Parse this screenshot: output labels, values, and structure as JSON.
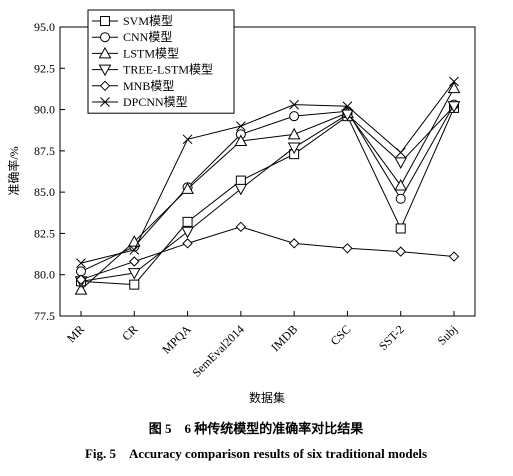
{
  "chart_data": {
    "type": "line",
    "ylabel": "准确率/%",
    "xlabel": "数据集",
    "categories": [
      "MR",
      "CR",
      "MPQA",
      "SemEval2014",
      "IMDB",
      "CSC",
      "SST-2",
      "Subj"
    ],
    "ylim": [
      77.5,
      95.0
    ],
    "yticks": [
      77.5,
      {
        "value": 80,
        "label": "80.0"
      },
      82.5,
      {
        "value": 85,
        "label": "85.0"
      },
      87.5,
      {
        "value": 90,
        "label": "90.0"
      },
      92.5,
      {
        "value": 95,
        "label": "95.0"
      }
    ],
    "legend": "upper left",
    "series": [
      {
        "name": "SVM模型",
        "marker": "square",
        "color": "#000000",
        "values": [
          79.6,
          79.4,
          83.2,
          85.7,
          87.3,
          89.6,
          82.8,
          90.1
        ]
      },
      {
        "name": "CNN模型",
        "marker": "circle",
        "color": "#000000",
        "values": [
          80.2,
          81.7,
          85.3,
          88.5,
          89.6,
          89.9,
          84.6,
          90.3
        ]
      },
      {
        "name": "LSTM模型",
        "marker": "triangle-up",
        "color": "#000000",
        "values": [
          79.1,
          82.0,
          85.2,
          88.1,
          88.5,
          89.8,
          85.4,
          91.3
        ]
      },
      {
        "name": "TREE-LSTM模型",
        "marker": "triangle-down",
        "color": "#000000",
        "values": [
          79.6,
          80.1,
          82.6,
          85.2,
          87.7,
          89.7,
          86.8,
          90.2
        ]
      },
      {
        "name": "MNB模型",
        "marker": "diamond",
        "color": "#000000",
        "values": [
          79.7,
          80.8,
          81.9,
          82.9,
          81.9,
          81.6,
          81.4,
          81.1
        ]
      },
      {
        "name": "DPCNN模型",
        "marker": "x",
        "color": "#000000",
        "values": [
          80.7,
          81.5,
          88.2,
          89.0,
          90.3,
          90.2,
          87.4,
          91.7
        ]
      }
    ]
  },
  "figure_caption": "图 5　6 种传统模型的准确率对比结果",
  "figure_caption_en": "Fig. 5　Accuracy comparison results of six traditional models"
}
